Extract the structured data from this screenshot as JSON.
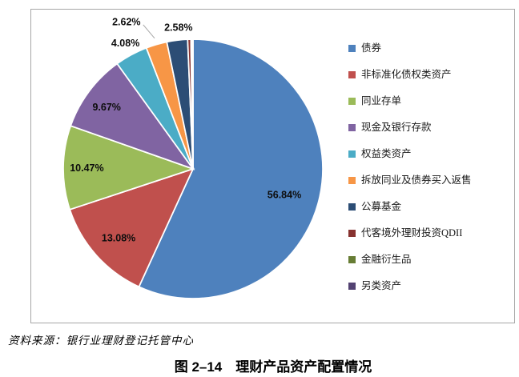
{
  "chart_data": {
    "type": "pie",
    "title": "",
    "categories": [
      "债券",
      "非标准化债权类资产",
      "同业存单",
      "现金及银行存款",
      "权益类资产",
      "拆放同业及债券买入返售",
      "公募基金",
      "代客境外理财投资QDII",
      "金融衍生品",
      "另类资产"
    ],
    "values": [
      56.84,
      13.08,
      10.47,
      9.67,
      4.08,
      2.62,
      2.58,
      0.4,
      0.15,
      0.11
    ],
    "data_labels": [
      "56.84%",
      "13.08%",
      "10.47%",
      "9.67%",
      "4.08%",
      "2.62%",
      "2.58%",
      "",
      "",
      ""
    ],
    "colors": [
      "#4E81BD",
      "#C0504D",
      "#9BBB59",
      "#8064A2",
      "#4BACC6",
      "#F79646",
      "#2C4D75",
      "#873230",
      "#677D35",
      "#534272"
    ],
    "legend_position": "right",
    "start_angle_deg": 0,
    "direction": "clockwise"
  },
  "legend": {
    "items": [
      {
        "label": "债券",
        "color": "#4E81BD"
      },
      {
        "label": "非标准化债权类资产",
        "color": "#C0504D"
      },
      {
        "label": "同业存单",
        "color": "#9BBB59"
      },
      {
        "label": "现金及银行存款",
        "color": "#8064A2"
      },
      {
        "label": "权益类资产",
        "color": "#4BACC6"
      },
      {
        "label": "拆放同业及债券买入返售",
        "color": "#F79646"
      },
      {
        "label": "公募基金",
        "color": "#2C4D75"
      },
      {
        "label": "代客境外理财投资QDII",
        "color": "#873230"
      },
      {
        "label": "金融衍生品",
        "color": "#677D35"
      },
      {
        "label": "另类资产",
        "color": "#534272"
      }
    ]
  },
  "source_note": "资料来源：银行业理财登记托管中心",
  "caption": "图 2–14　理财产品资产配置情况"
}
